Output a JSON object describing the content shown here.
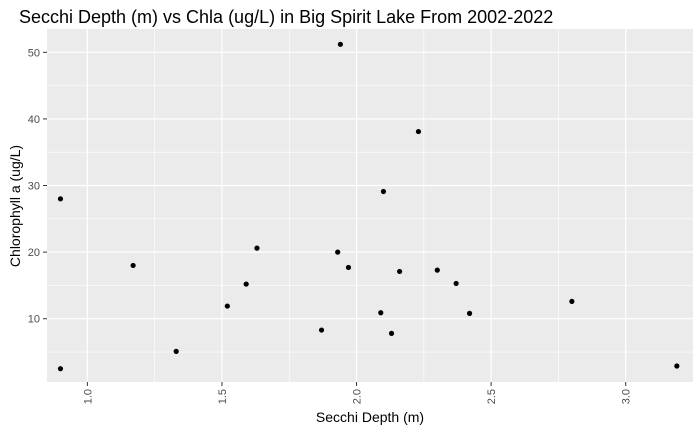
{
  "chart_data": {
    "type": "scatter",
    "title": "Secchi Depth (m) vs Chla (ug/L) in Big Spirit Lake From 2002-2022",
    "xlabel": "Secchi Depth (m)",
    "ylabel": "Chlorophyll a (ug/L)",
    "x_ticks": [
      "1.0",
      "1.5",
      "2.0",
      "2.5",
      "3.0"
    ],
    "y_ticks": [
      "10",
      "20",
      "30",
      "40",
      "50"
    ],
    "xlim": [
      0.85,
      3.25
    ],
    "ylim": [
      0.5,
      53.5
    ],
    "grid": true,
    "legend": "none",
    "colors": {
      "panel": "#ebebeb",
      "grid": "#ffffff",
      "point": "#000000"
    },
    "x": [
      0.9,
      0.9,
      1.17,
      1.33,
      1.52,
      1.59,
      1.63,
      1.87,
      1.93,
      1.94,
      1.97,
      2.09,
      2.1,
      2.13,
      2.16,
      2.23,
      2.3,
      2.37,
      2.42,
      2.8,
      3.19
    ],
    "y": [
      28.0,
      2.5,
      18.0,
      5.1,
      11.9,
      15.2,
      20.6,
      8.3,
      20.0,
      51.2,
      17.7,
      10.9,
      29.1,
      7.8,
      17.1,
      38.1,
      17.3,
      15.3,
      10.8,
      12.6,
      2.9
    ]
  }
}
